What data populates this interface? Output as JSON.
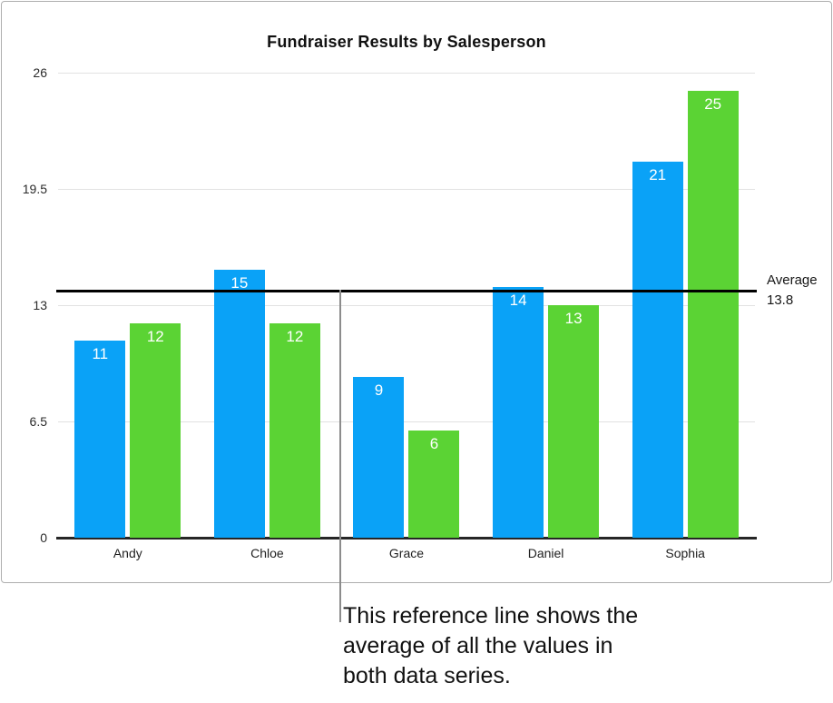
{
  "chart_data": {
    "type": "bar",
    "title": "Fundraiser Results by Salesperson",
    "categories": [
      "Andy",
      "Chloe",
      "Grace",
      "Daniel",
      "Sophia"
    ],
    "series": [
      {
        "name": "series-blue",
        "color": "#0aa2f7",
        "values": [
          11,
          15,
          9,
          14,
          21
        ]
      },
      {
        "name": "series-green",
        "color": "#5bd334",
        "values": [
          12,
          12,
          6,
          13,
          25
        ]
      }
    ],
    "xlabel": "",
    "ylabel": "",
    "ylim": [
      0,
      26
    ],
    "yticks": [
      0,
      6.5,
      13,
      19.5,
      26
    ],
    "grid": true,
    "legend": "none",
    "bar_value_labels": true,
    "reference_line": {
      "value": 13.8,
      "label": "Average",
      "value_label": "13.8",
      "color": "#000000"
    }
  },
  "callout": {
    "text": "This reference line shows the\naverage of all the values in\nboth data series."
  },
  "colors": {
    "bar_blue": "#0aa2f7",
    "bar_green": "#5bd334",
    "gridline": "#e2e2e2",
    "axis": "#262626",
    "reference_line": "#000000",
    "callout_line": "#8c8c8c",
    "frame_border": "#aeaeae",
    "bar_label_text": "#ffffff"
  }
}
